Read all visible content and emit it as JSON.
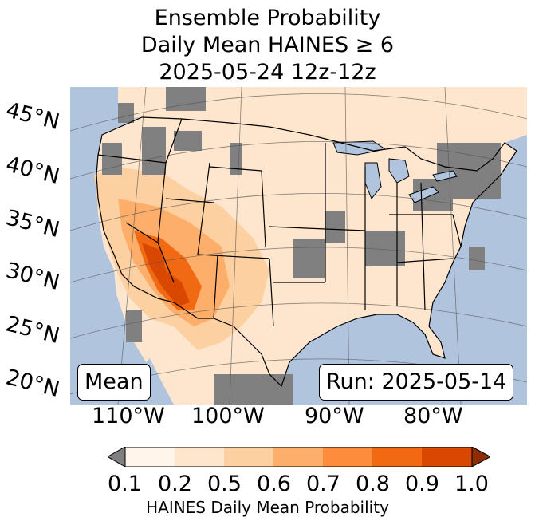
{
  "title": {
    "line1": "Ensemble Probability",
    "line2": "Daily Mean HAINES ≥ 6",
    "line3": "2025-05-24 12z-12z"
  },
  "map": {
    "lat_labels": [
      "45°N",
      "40°N",
      "35°N",
      "30°N",
      "25°N",
      "20°N"
    ],
    "lon_labels": [
      "110°W",
      "100°W",
      "90°W",
      "80°W"
    ],
    "stat_label": "Mean",
    "run_label": "Run: 2025-05-14",
    "colors": {
      "ocean": "#b0c4de",
      "land_low": "#fee6ce",
      "mask": "#808080",
      "border": "#000000"
    }
  },
  "colorbar": {
    "ticks": [
      "0.1",
      "0.2",
      "0.5",
      "0.6",
      "0.7",
      "0.8",
      "0.9",
      "1.0"
    ],
    "label": "HAINES Daily Mean Probability",
    "colors": [
      "#fff5eb",
      "#fee6ce",
      "#fdd0a2",
      "#fdae6b",
      "#fd8d3c",
      "#f16913",
      "#d94801",
      "#8c2d04"
    ],
    "under_color": "#808080"
  }
}
